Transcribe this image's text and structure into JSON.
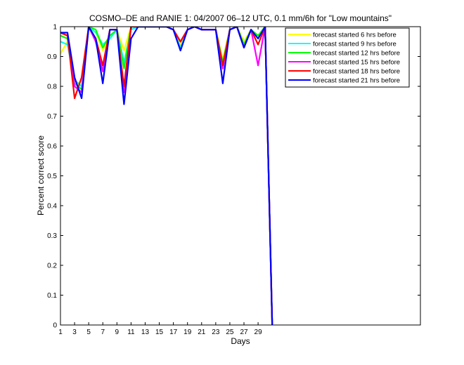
{
  "chart_data": {
    "type": "line",
    "title": "COSMO–DE and RANIE 1: 04/2007 06–12 UTC, 0.1 mm/6h for \"Low mountains\"",
    "xlabel": "Days",
    "ylabel": "Percent correct score",
    "xlim": [
      1,
      52
    ],
    "ylim": [
      0,
      1
    ],
    "xticks": [
      1,
      3,
      5,
      7,
      9,
      11,
      13,
      15,
      17,
      19,
      21,
      23,
      25,
      27,
      29
    ],
    "xtick_labels": [
      "1",
      "3",
      "5",
      "7",
      "9",
      "11",
      "13",
      "15",
      "17",
      "19",
      "21",
      "23",
      "25",
      "27",
      "29"
    ],
    "yticks": [
      0,
      0.1,
      0.2,
      0.3,
      0.4,
      0.5,
      0.6,
      0.7,
      0.8,
      0.9,
      1
    ],
    "ytick_labels": [
      "0",
      "0.1",
      "0.2",
      "0.3",
      "0.4",
      "0.5",
      "0.6",
      "0.7",
      "0.8",
      "0.9",
      "1"
    ],
    "grid": false,
    "legend_position": "top-right",
    "x": [
      1,
      2,
      3,
      4,
      5,
      6,
      7,
      8,
      9,
      10,
      11,
      12,
      13,
      14,
      15,
      16,
      17,
      18,
      19,
      20,
      21,
      22,
      23,
      24,
      25,
      26,
      27,
      28,
      29,
      30,
      31
    ],
    "series": [
      {
        "name": "forecast started 6 hrs before",
        "color": "#ffff00",
        "values": [
          0.91,
          0.95,
          0.8,
          0.82,
          1.0,
          0.98,
          0.92,
          0.97,
          0.99,
          0.92,
          1.0,
          1.0,
          1.0,
          1.0,
          1.0,
          1.0,
          0.99,
          0.94,
          0.99,
          1.0,
          0.99,
          0.99,
          0.99,
          0.89,
          0.99,
          1.0,
          0.95,
          0.99,
          0.97,
          1.0,
          0.0
        ]
      },
      {
        "name": "forecast started 9 hrs before",
        "color": "#00ffff",
        "values": [
          0.95,
          0.94,
          0.82,
          0.8,
          1.0,
          0.98,
          0.94,
          0.96,
          0.99,
          0.88,
          0.99,
          1.0,
          1.0,
          1.0,
          1.0,
          1.0,
          0.99,
          0.93,
          0.99,
          1.0,
          0.99,
          0.99,
          0.99,
          0.86,
          0.99,
          1.0,
          0.94,
          0.99,
          0.96,
          1.0,
          0.0
        ]
      },
      {
        "name": "forecast started 12 hrs before",
        "color": "#00ff00",
        "values": [
          0.97,
          0.96,
          0.81,
          0.79,
          1.0,
          0.99,
          0.93,
          0.97,
          0.99,
          0.86,
          1.0,
          1.0,
          1.0,
          1.0,
          1.0,
          1.0,
          0.99,
          0.92,
          0.99,
          1.0,
          0.99,
          0.99,
          0.99,
          0.88,
          0.99,
          1.0,
          0.94,
          0.99,
          0.97,
          1.0,
          0.0
        ]
      },
      {
        "name": "forecast started 15 hrs before",
        "color": "#ff00ff",
        "values": [
          0.98,
          0.97,
          0.8,
          0.78,
          1.0,
          0.95,
          0.85,
          0.99,
          0.99,
          0.78,
          1.0,
          1.0,
          1.0,
          1.0,
          1.0,
          1.0,
          0.99,
          0.95,
          0.99,
          1.0,
          0.99,
          0.99,
          0.99,
          0.86,
          0.99,
          1.0,
          0.93,
          0.99,
          0.87,
          1.0,
          0.0
        ]
      },
      {
        "name": "forecast started 18 hrs before",
        "color": "#ff0000",
        "values": [
          0.98,
          0.97,
          0.76,
          0.83,
          1.0,
          0.96,
          0.87,
          0.99,
          0.99,
          0.8,
          1.0,
          1.0,
          1.0,
          1.0,
          1.0,
          1.0,
          0.99,
          0.95,
          0.99,
          1.0,
          0.99,
          0.99,
          0.99,
          0.87,
          0.99,
          1.0,
          0.93,
          0.99,
          0.94,
          1.0,
          0.0
        ]
      },
      {
        "name": "forecast started 21 hrs before",
        "color": "#0000ff",
        "values": [
          0.98,
          0.98,
          0.83,
          0.76,
          1.0,
          0.96,
          0.81,
          0.99,
          0.99,
          0.74,
          0.96,
          1.0,
          1.0,
          1.0,
          1.0,
          1.0,
          0.99,
          0.92,
          0.99,
          1.0,
          0.99,
          0.99,
          0.99,
          0.81,
          0.99,
          1.0,
          0.93,
          0.99,
          0.96,
          1.0,
          0.0
        ]
      }
    ]
  }
}
